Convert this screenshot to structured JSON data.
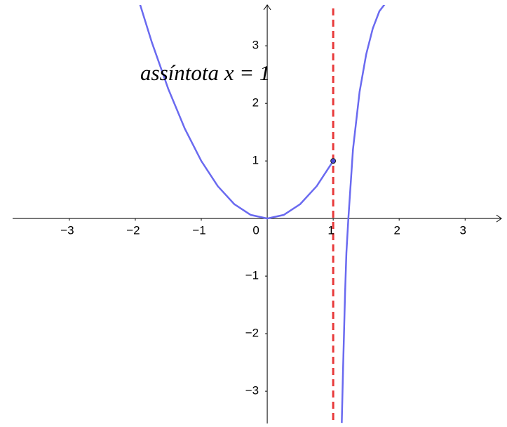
{
  "chart_data": {
    "type": "line",
    "annotation": "assíntota x = 1",
    "asymptote": {
      "x": 1,
      "color": "#e8393a"
    },
    "series": [
      {
        "color": "#6a6af0",
        "x": [
          -1.93,
          -1.75,
          -1.5,
          -1.25,
          -1,
          -0.75,
          -0.5,
          -0.25,
          0,
          0.25,
          0.5,
          0.75,
          1
        ],
        "values": [
          3.7249,
          3.0625,
          2.25,
          1.5625,
          1,
          0.5625,
          0.25,
          0.0625,
          0,
          0.0625,
          0.25,
          0.5625,
          1
        ]
      },
      {
        "color": "#6a6af0",
        "x": [
          1.13,
          1.15,
          1.18,
          1.2,
          1.23,
          1.3,
          1.4,
          1.5,
          1.6,
          1.7,
          1.78
        ],
        "values": [
          -3.55,
          -2.6,
          -1.3,
          -0.6,
          0,
          1.2,
          2.2,
          2.85,
          3.3,
          3.6,
          3.72
        ]
      }
    ],
    "point": {
      "x": 1,
      "y": 1,
      "color": "#4a4ad8"
    },
    "xlim": [
      -3.86,
      3.55
    ],
    "ylim": [
      -3.56,
      3.71
    ],
    "xticks": [
      {
        "value": -3,
        "label": "−3"
      },
      {
        "value": -2,
        "label": "−2"
      },
      {
        "value": -1,
        "label": "−1"
      },
      0,
      1,
      2,
      3
    ],
    "yticks": [
      {
        "value": -3,
        "label": "−3"
      },
      {
        "value": -2,
        "label": "−2"
      },
      {
        "value": -1,
        "label": "−1"
      },
      1,
      2,
      3
    ],
    "grid": false
  }
}
